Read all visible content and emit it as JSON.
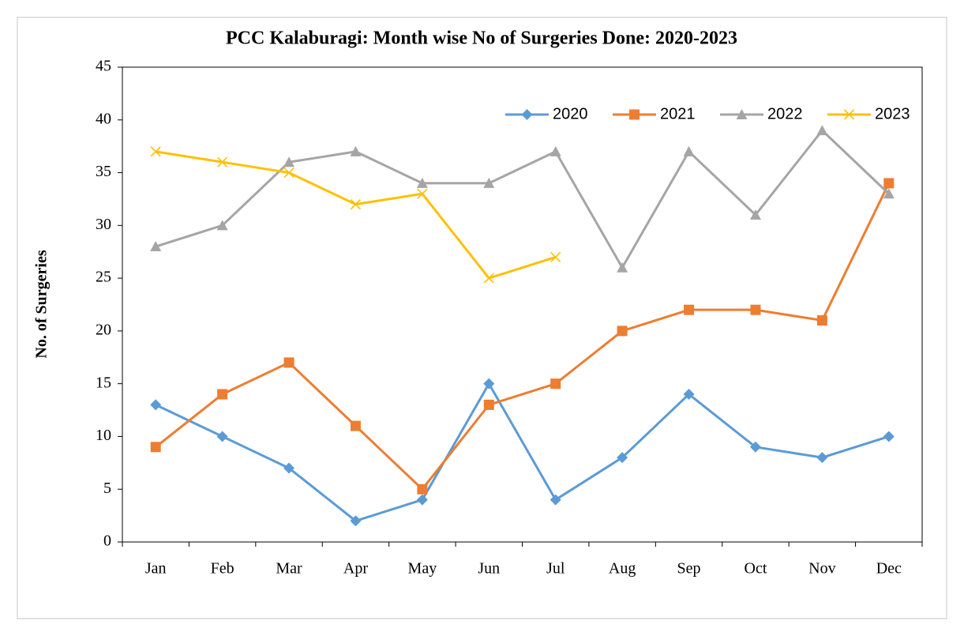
{
  "chart_data": {
    "type": "line",
    "title": "PCC Kalaburagi: Month wise No of Surgeries Done: 2020-2023",
    "y_label": "No. of Surgeries",
    "categories": [
      "Jan",
      "Feb",
      "Mar",
      "Apr",
      "May",
      "Jun",
      "Jul",
      "Aug",
      "Sep",
      "Oct",
      "Nov",
      "Dec"
    ],
    "series": [
      {
        "name": "2020",
        "color": "#5b9bd5",
        "marker": "diamond",
        "values": [
          13,
          10,
          7,
          2,
          4,
          15,
          4,
          8,
          14,
          9,
          8,
          10
        ]
      },
      {
        "name": "2021",
        "color": "#ed7d31",
        "marker": "square",
        "values": [
          9,
          14,
          17,
          11,
          5,
          13,
          15,
          20,
          22,
          22,
          21,
          34
        ]
      },
      {
        "name": "2022",
        "color": "#a5a5a5",
        "marker": "triangle",
        "values": [
          28,
          30,
          36,
          37,
          34,
          34,
          37,
          26,
          37,
          31,
          39,
          33
        ]
      },
      {
        "name": "2023",
        "color": "#ffc000",
        "marker": "x",
        "values": [
          37,
          36,
          35,
          32,
          33,
          25,
          27,
          null,
          null,
          null,
          null,
          null
        ]
      }
    ],
    "ylim": [
      0,
      45
    ],
    "yticks": [
      0,
      5,
      10,
      15,
      20,
      25,
      30,
      35,
      40,
      45
    ],
    "grid": false,
    "legend": "top-right"
  }
}
